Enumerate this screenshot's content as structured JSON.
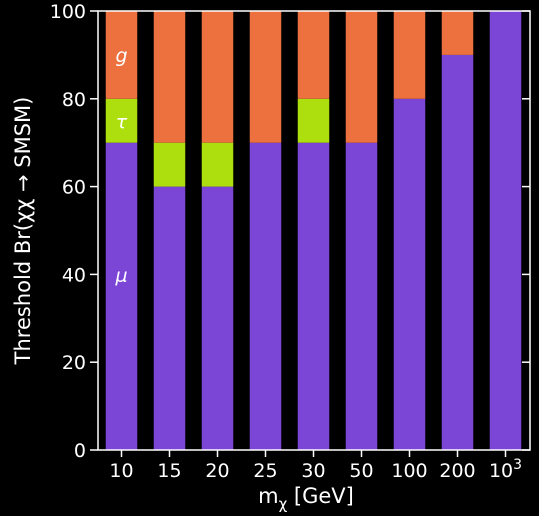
{
  "chart_data": {
    "type": "bar",
    "stacked": true,
    "categories": [
      "10",
      "15",
      "20",
      "25",
      "30",
      "50",
      "100",
      "200",
      "10³"
    ],
    "series": [
      {
        "name": "μ",
        "color": "#7b45d6",
        "values": [
          70,
          60,
          60,
          70,
          70,
          70,
          80,
          90,
          100
        ]
      },
      {
        "name": "τ",
        "color": "#addf0e",
        "values": [
          10,
          10,
          10,
          0,
          10,
          0,
          0,
          0,
          0
        ]
      },
      {
        "name": "g",
        "color": "#ec713f",
        "values": [
          20,
          30,
          30,
          30,
          20,
          30,
          20,
          10,
          0
        ]
      }
    ],
    "xlabel": "m",
    "xlabel_sub": "χ",
    "xlabel_unit": " [GeV]",
    "ylabel": "Threshold Br(χχ → SMSM)",
    "ylim": [
      0,
      100
    ],
    "yticks": [
      0,
      20,
      40,
      60,
      80,
      100
    ],
    "grid": false,
    "background": "#000000",
    "axis_color": "#ffffff"
  }
}
